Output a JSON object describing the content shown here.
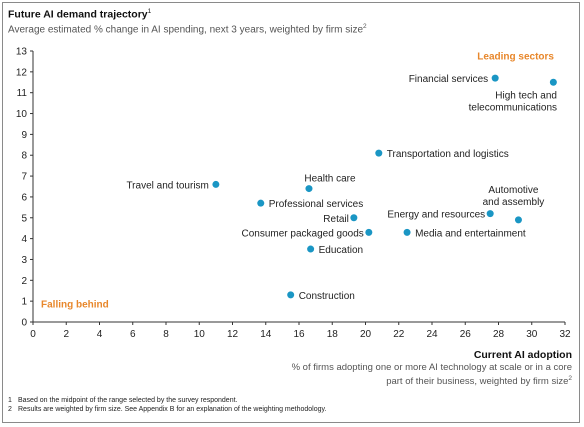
{
  "chart_data": {
    "type": "scatter",
    "title": "Future AI demand trajectory",
    "title_footnote_mark": "1",
    "subtitle": "Average estimated % change in AI spending, next 3 years, weighted by firm size",
    "subtitle_footnote_mark": "2",
    "xlabel": "Current AI adoption",
    "xlabel_sub": "% of firms adopting one or more AI technology at scale or in a core part of their business, weighted by firm size",
    "xlabel_sub_footnote_mark": "2",
    "xlim": [
      0,
      32
    ],
    "ylim": [
      0,
      13
    ],
    "xticks": [
      0,
      2,
      4,
      6,
      8,
      10,
      12,
      14,
      16,
      18,
      20,
      22,
      24,
      26,
      28,
      30,
      32
    ],
    "yticks": [
      0,
      1,
      2,
      3,
      4,
      5,
      6,
      7,
      8,
      9,
      10,
      11,
      12,
      13
    ],
    "grid": false,
    "point_color": "#1a96c4",
    "annotation_color": "#e8872b",
    "annotations": [
      "Leading sectors",
      "Falling behind"
    ],
    "points": [
      {
        "label": "Financial services",
        "x": 27.8,
        "y": 11.7
      },
      {
        "label": "High tech and telecommunications",
        "x": 31.3,
        "y": 11.5
      },
      {
        "label": "Transportation and logistics",
        "x": 20.8,
        "y": 8.1
      },
      {
        "label": "Travel and tourism",
        "x": 11.0,
        "y": 6.6
      },
      {
        "label": "Health care",
        "x": 16.6,
        "y": 6.4
      },
      {
        "label": "Professional services",
        "x": 13.7,
        "y": 5.7
      },
      {
        "label": "Retail",
        "x": 19.3,
        "y": 5.0
      },
      {
        "label": "Consumer packaged goods",
        "x": 20.2,
        "y": 4.3
      },
      {
        "label": "Education",
        "x": 16.7,
        "y": 3.5
      },
      {
        "label": "Energy and resources",
        "x": 27.5,
        "y": 5.2
      },
      {
        "label": "Automotive and assembly",
        "x": 29.2,
        "y": 4.9
      },
      {
        "label": "Media and entertainment",
        "x": 22.5,
        "y": 4.3
      },
      {
        "label": "Construction",
        "x": 15.5,
        "y": 1.3
      }
    ]
  },
  "footnotes": [
    {
      "num": "1",
      "text": "Based on the midpoint of the range selected by the survey respondent."
    },
    {
      "num": "2",
      "text": "Results are weighted by firm size. See Appendix B for an explanation of the weighting methodology."
    }
  ]
}
